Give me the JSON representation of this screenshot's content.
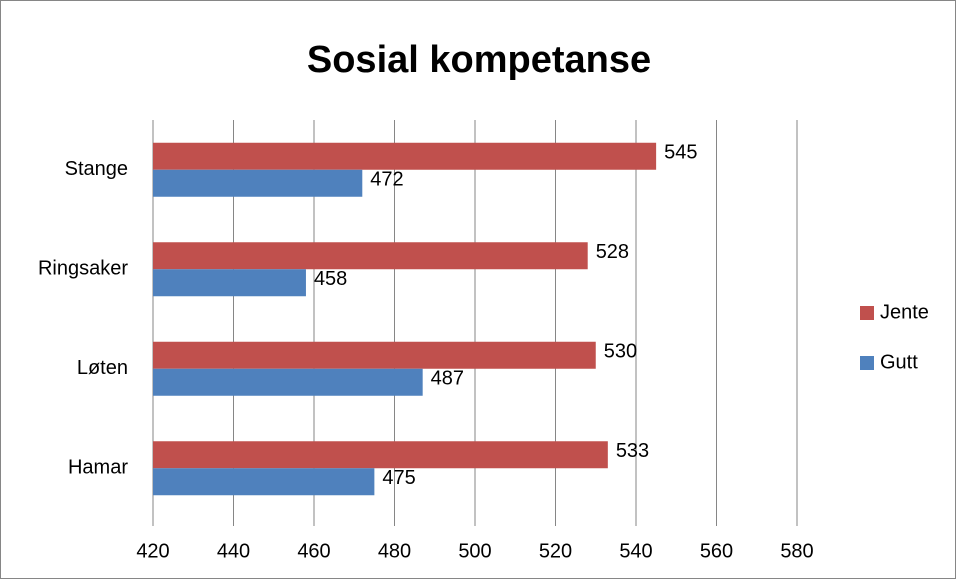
{
  "chart_data": {
    "type": "bar",
    "orientation": "horizontal",
    "title": "Sosial kompetanse",
    "categories": [
      "Hamar",
      "Løten",
      "Ringsaker",
      "Stange"
    ],
    "series": [
      {
        "name": "Jente",
        "color": "#c0504d",
        "values": [
          533,
          530,
          528,
          545
        ]
      },
      {
        "name": "Gutt",
        "color": "#4f81bd",
        "values": [
          475,
          487,
          458,
          472
        ]
      }
    ],
    "xlim": [
      420,
      580
    ],
    "xticks": [
      420,
      440,
      460,
      480,
      500,
      520,
      540,
      560,
      580
    ],
    "grid": true,
    "legend": "right"
  }
}
